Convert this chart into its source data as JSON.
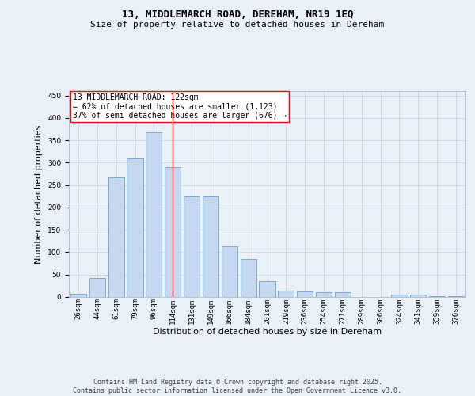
{
  "title": "13, MIDDLEMARCH ROAD, DEREHAM, NR19 1EQ",
  "subtitle": "Size of property relative to detached houses in Dereham",
  "xlabel": "Distribution of detached houses by size in Dereham",
  "ylabel": "Number of detached properties",
  "categories": [
    "26sqm",
    "44sqm",
    "61sqm",
    "79sqm",
    "96sqm",
    "114sqm",
    "131sqm",
    "149sqm",
    "166sqm",
    "184sqm",
    "201sqm",
    "219sqm",
    "236sqm",
    "254sqm",
    "271sqm",
    "289sqm",
    "306sqm",
    "324sqm",
    "341sqm",
    "359sqm",
    "376sqm"
  ],
  "values": [
    7,
    42,
    268,
    310,
    368,
    290,
    225,
    225,
    114,
    85,
    35,
    15,
    12,
    10,
    10,
    0,
    0,
    5,
    5,
    2,
    1
  ],
  "bar_color": "#c5d8f0",
  "bar_edge_color": "#5a8fc4",
  "grid_color": "#d0d8e8",
  "background_color": "#eaf0f8",
  "vline_x_index": 5,
  "vline_color": "red",
  "annotation_text": "13 MIDDLEMARCH ROAD: 122sqm\n← 62% of detached houses are smaller (1,123)\n37% of semi-detached houses are larger (676) →",
  "annotation_box_color": "white",
  "annotation_box_edge": "red",
  "ylim": [
    0,
    460
  ],
  "yticks": [
    0,
    50,
    100,
    150,
    200,
    250,
    300,
    350,
    400,
    450
  ],
  "title_fontsize": 9,
  "subtitle_fontsize": 8,
  "tick_fontsize": 6.5,
  "axis_label_fontsize": 8,
  "annotation_fontsize": 7,
  "footer_fontsize": 6,
  "footer": "Contains HM Land Registry data © Crown copyright and database right 2025.\nContains public sector information licensed under the Open Government Licence v3.0."
}
